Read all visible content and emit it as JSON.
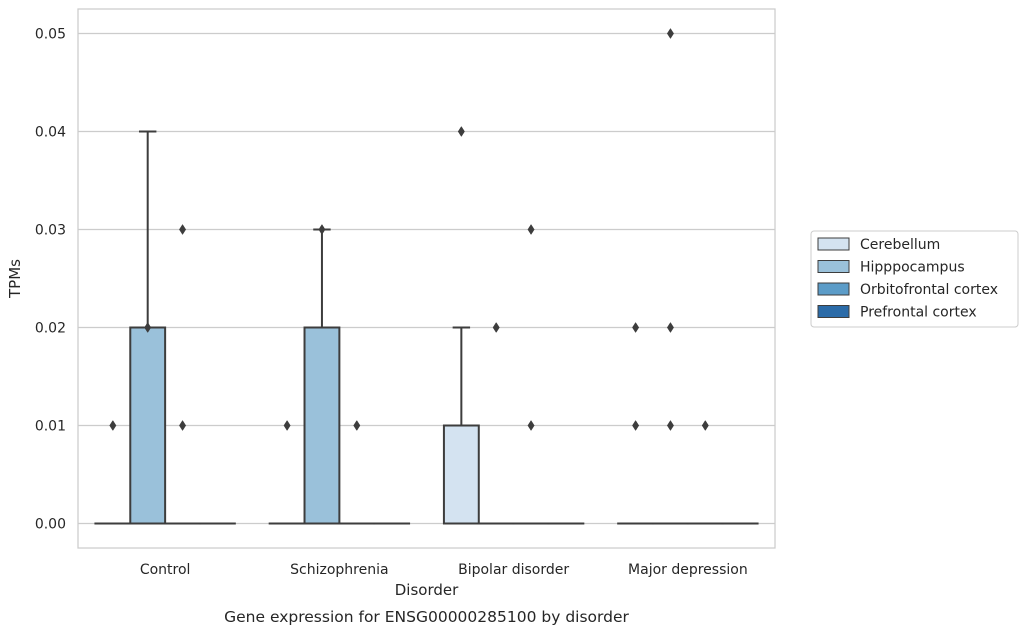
{
  "chart_data": {
    "type": "box",
    "categories": [
      "Control",
      "Schizophrenia",
      "Bipolar disorder",
      "Major depression"
    ],
    "xlabel": "Disorder",
    "ylabel": "TPMs",
    "caption": "Gene expression for ENSG00000285100 by disorder",
    "ylim": [
      -0.0025,
      0.0525
    ],
    "yticks": [
      0.0,
      0.01,
      0.02,
      0.03,
      0.04,
      0.05
    ],
    "ytick_labels": [
      "0.00",
      "0.01",
      "0.02",
      "0.03",
      "0.04",
      "0.05"
    ],
    "grid": true,
    "legend_position": "right",
    "series": [
      {
        "name": "Cerebellum",
        "color": "#d4e3f1",
        "boxes": [
          {
            "q1": 0,
            "median": 0,
            "q3": 0,
            "whisker_low": 0,
            "whisker_high": 0,
            "outliers": [
              0.01
            ]
          },
          {
            "q1": 0,
            "median": 0,
            "q3": 0,
            "whisker_low": 0,
            "whisker_high": 0,
            "outliers": [
              0.01
            ]
          },
          {
            "q1": 0,
            "median": 0,
            "q3": 0.01,
            "whisker_low": 0,
            "whisker_high": 0.02,
            "outliers": [
              0.04
            ]
          },
          {
            "q1": 0,
            "median": 0,
            "q3": 0,
            "whisker_low": 0,
            "whisker_high": 0,
            "outliers": [
              0.01,
              0.02
            ]
          }
        ]
      },
      {
        "name": "Hipppocampus",
        "color": "#9ac1da",
        "boxes": [
          {
            "q1": 0,
            "median": 0,
            "q3": 0.02,
            "whisker_low": 0,
            "whisker_high": 0.04,
            "outliers": [
              0.02
            ]
          },
          {
            "q1": 0,
            "median": 0,
            "q3": 0.02,
            "whisker_low": 0,
            "whisker_high": 0.03,
            "outliers": [
              0.03
            ]
          },
          {
            "q1": 0,
            "median": 0,
            "q3": 0,
            "whisker_low": 0,
            "whisker_high": 0,
            "outliers": [
              0.02
            ]
          },
          {
            "q1": 0,
            "median": 0,
            "q3": 0,
            "whisker_low": 0,
            "whisker_high": 0,
            "outliers": [
              0.01,
              0.02,
              0.05
            ]
          }
        ]
      },
      {
        "name": "Orbitofrontal cortex",
        "color": "#5b9cc8",
        "boxes": [
          {
            "q1": 0,
            "median": 0,
            "q3": 0,
            "whisker_low": 0,
            "whisker_high": 0,
            "outliers": [
              0.01,
              0.03
            ]
          },
          {
            "q1": 0,
            "median": 0,
            "q3": 0,
            "whisker_low": 0,
            "whisker_high": 0,
            "outliers": [
              0.01
            ]
          },
          {
            "q1": 0,
            "median": 0,
            "q3": 0,
            "whisker_low": 0,
            "whisker_high": 0,
            "outliers": [
              0.01,
              0.03
            ]
          },
          {
            "q1": 0,
            "median": 0,
            "q3": 0,
            "whisker_low": 0,
            "whisker_high": 0,
            "outliers": [
              0.01
            ]
          }
        ]
      },
      {
        "name": "Prefrontal cortex",
        "color": "#2b6ba8",
        "boxes": [
          {
            "q1": 0,
            "median": 0,
            "q3": 0,
            "whisker_low": 0,
            "whisker_high": 0,
            "outliers": []
          },
          {
            "q1": 0,
            "median": 0,
            "q3": 0,
            "whisker_low": 0,
            "whisker_high": 0,
            "outliers": []
          },
          {
            "q1": 0,
            "median": 0,
            "q3": 0,
            "whisker_low": 0,
            "whisker_high": 0,
            "outliers": []
          },
          {
            "q1": 0,
            "median": 0,
            "q3": 0,
            "whisker_low": 0,
            "whisker_high": 0,
            "outliers": []
          }
        ]
      }
    ]
  }
}
